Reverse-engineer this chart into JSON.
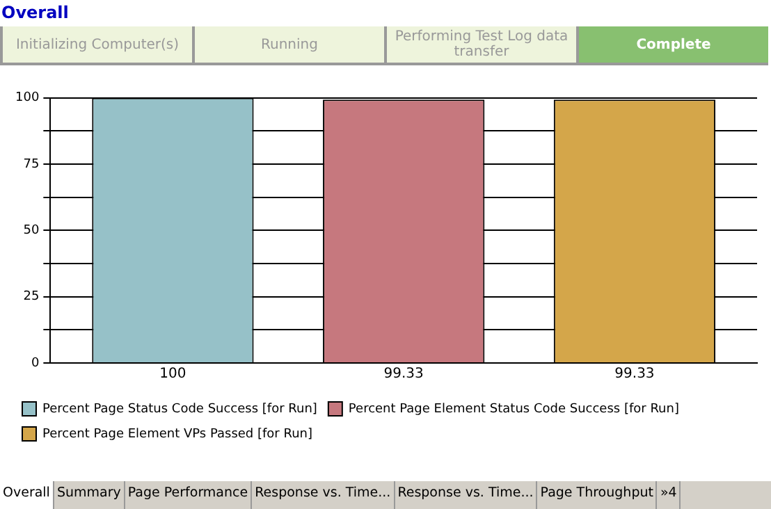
{
  "chart_data": {
    "type": "bar",
    "title": "Overall",
    "categories": [
      null
    ],
    "series": [
      {
        "name": "Percent Page Status Code Success [for Run]",
        "color": "#96c1c8",
        "values": [
          100
        ]
      },
      {
        "name": "Percent Page Element Status Code Success [for Run]",
        "color": "#c6787e",
        "values": [
          99.33
        ]
      },
      {
        "name": "Percent Page Element VPs Passed [for Run]",
        "color": "#d4a64a",
        "values": [
          99.33
        ]
      }
    ],
    "ylim": [
      0,
      100
    ],
    "yticks": [
      0,
      {
        "value": 12.5,
        "label": null
      },
      25,
      {
        "value": 37.5,
        "label": null
      },
      50,
      {
        "value": 62.5,
        "label": null
      },
      75,
      {
        "value": 87.5,
        "label": null
      },
      100
    ],
    "grid": "y",
    "legend": "bottom",
    "data_labels": true,
    "annotations": [
      "Initializing Computer(s)",
      "Running",
      "Performing Test Log data transfer",
      "Complete",
      "Overall",
      "Summary",
      "Page Performance",
      "Response vs. Time...",
      "Response vs. Time...",
      "Page Throughput",
      "»4"
    ]
  }
}
